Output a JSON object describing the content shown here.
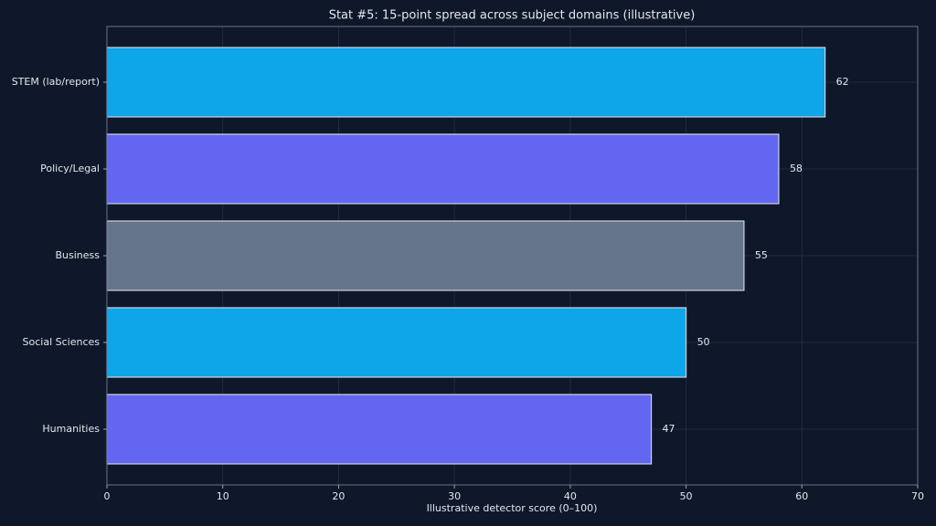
{
  "chart_data": {
    "type": "barh",
    "title": "Stat #5: 15-point spread across subject domains (illustrative)",
    "x_label": "Illustrative detector score (0–100)",
    "categories": [
      "STEM (lab/report)",
      "Policy/Legal",
      "Business",
      "Social Sciences",
      "Humanities"
    ],
    "values": [
      62,
      58,
      55,
      50,
      47
    ],
    "colors": [
      "#0ea5e9",
      "#6366f1",
      "#64748b",
      "#0ea5e9",
      "#6366f1"
    ],
    "xlim": [
      0,
      70
    ],
    "xticks": [
      0,
      10,
      20,
      30,
      40,
      50,
      60,
      70
    ],
    "grid": true
  }
}
